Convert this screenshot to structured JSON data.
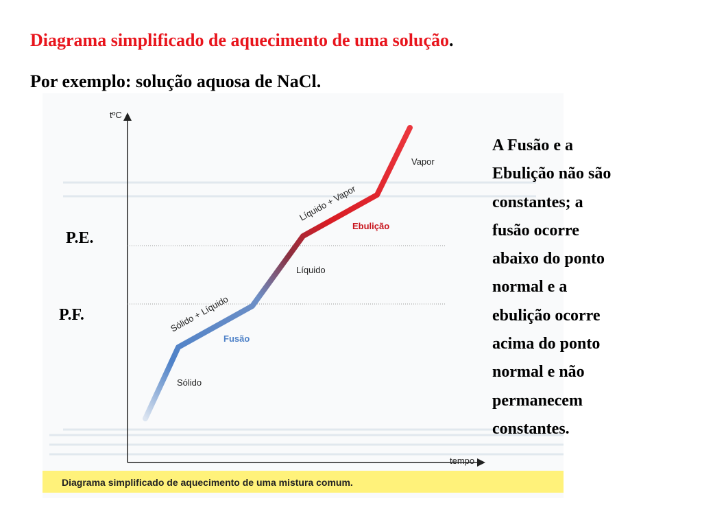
{
  "header": {
    "title": "Diagrama simplificado de aquecimento de uma solução",
    "title_dot": ".",
    "subtitle": "Por exemplo: solução aquosa de NaCl."
  },
  "markers": {
    "pe": "P.E.",
    "pf": "P.F."
  },
  "chart_data": {
    "type": "line",
    "ylabel": "tºC",
    "xlabel": "tempo",
    "phase_labels": [
      "Sólido",
      "Sólido + Líquido",
      "Fusão",
      "Líquido",
      "Líquido + Vapor",
      "Ebulição",
      "Vapor"
    ],
    "reference_lines": [
      "P.E.",
      "P.F."
    ],
    "caption": "Diagrama simplificado de aquecimento de uma mistura comum.",
    "colors": {
      "cold": "#4f82c8",
      "hot": "#e8141c",
      "caption_band": "#fff27a"
    }
  },
  "side_text": {
    "lines": [
      "A Fusão e a",
      "Ebulição não são",
      "constantes; a",
      "fusão ocorre",
      "abaixo do ponto",
      "normal e a",
      "ebulição ocorre",
      "acima do ponto",
      "normal e não",
      "permanecem",
      "constantes."
    ]
  }
}
